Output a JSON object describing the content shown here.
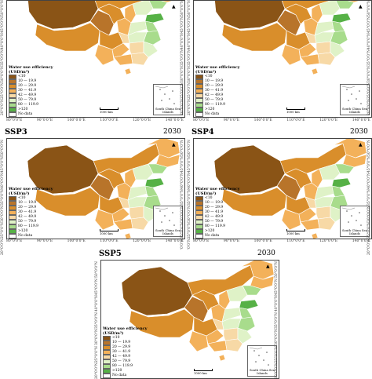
{
  "legend": {
    "title_line1": "Water use efficiency",
    "title_line2": "(USD/m³)",
    "classes": [
      {
        "label": "<10",
        "color": "#8a5416"
      },
      {
        "label": "10 — 19.9",
        "color": "#b8742a"
      },
      {
        "label": "20 — 29.9",
        "color": "#d98e2b"
      },
      {
        "label": "30 — 41.9",
        "color": "#f3b15a"
      },
      {
        "label": "42 — 49.9",
        "color": "#f7d9a6"
      },
      {
        "label": "50 — 79.9",
        "color": "#dff2c7"
      },
      {
        "label": "80 — 119.9",
        "color": "#a8dc8c"
      },
      {
        "label": ">120",
        "color": "#56b146"
      },
      {
        "label": "No data",
        "color": "#ffffff"
      }
    ]
  },
  "inset_label": "South China Sea Islands",
  "scale_label": "1000 km",
  "latitudes": [
    "50°0'0\"N",
    "45°0'0\"N",
    "40°0'0\"N",
    "35°0'0\"N",
    "30°0'0\"N",
    "25°0'0\"N",
    "20°0'0\"N"
  ],
  "longitudes": [
    "80°0'0\"E",
    "90°0'0\"E",
    "100°0'0\"E",
    "110°0'0\"E",
    "120°0'0\"E",
    "140°0'0\"E"
  ],
  "panels": [
    {
      "id": "ssp1",
      "title": "",
      "year": ""
    },
    {
      "id": "ssp2",
      "title": "",
      "year": ""
    },
    {
      "id": "ssp3",
      "title": "SSP3",
      "year": "2030"
    },
    {
      "id": "ssp4",
      "title": "SSP4",
      "year": "2030"
    },
    {
      "id": "ssp5",
      "title": "SSP5",
      "year": "2030"
    }
  ]
}
